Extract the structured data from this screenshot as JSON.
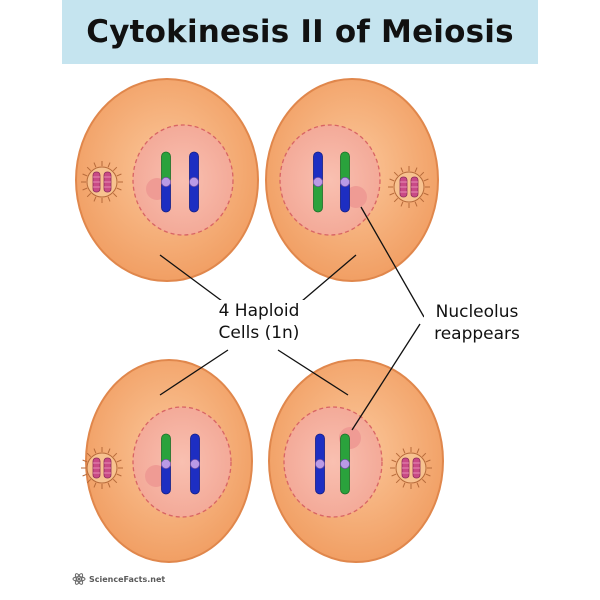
{
  "title": "Cytokinesis II of Meiosis",
  "labels": {
    "haploid_line1": "4 Haploid",
    "haploid_line2": "Cells (1n)",
    "nucleolus_line1": "Nucleolus",
    "nucleolus_line2": "reappears"
  },
  "logo": {
    "text": "ScienceFacts.net"
  },
  "colors": {
    "banner": "#c5e4ef",
    "cytoplasm": "#f5ad7a",
    "cell_membrane": "#e0874c",
    "nucleus": "#f6b5a6",
    "nuclear_envelope": "#d86464",
    "nucleolus": "#ef9b94",
    "chromatid_blue": "#1d2ec2",
    "chromatid_green": "#2aa23c",
    "centromere": "#b99ae6",
    "centrosome": "#c94a86"
  },
  "cells": [
    {
      "name": "top-left",
      "chromosomes": [
        "green-blue",
        "blue"
      ]
    },
    {
      "name": "top-right",
      "chromosomes": [
        "blue-green",
        "green-blue"
      ]
    },
    {
      "name": "bottom-left",
      "chromosomes": [
        "green-blue",
        "blue"
      ]
    },
    {
      "name": "bottom-right",
      "chromosomes": [
        "blue",
        "green"
      ]
    }
  ]
}
